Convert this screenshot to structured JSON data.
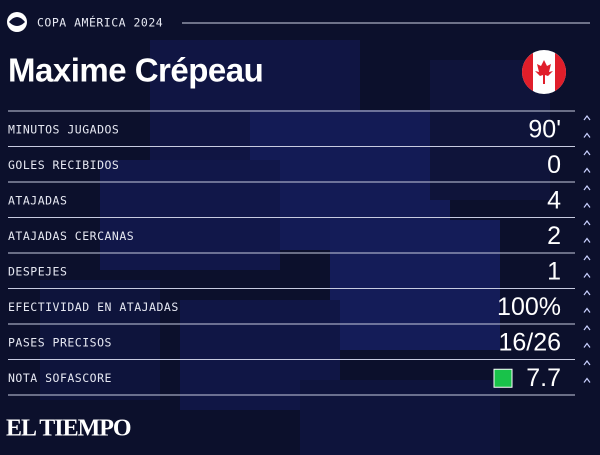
{
  "header": {
    "competition": "COPA AMÉRICA 2024",
    "player": "Maxime Crépeau"
  },
  "stats": {
    "rows": [
      {
        "label": "MINUTOS JUGADOS",
        "value": "90'"
      },
      {
        "label": "GOLES RECIBIDOS",
        "value": "0"
      },
      {
        "label": "ATAJADAS",
        "value": "4"
      },
      {
        "label": "ATAJADAS CERCANAS",
        "value": "2"
      },
      {
        "label": "DESPEJES",
        "value": "1"
      },
      {
        "label": "EFECTIVIDAD EN ATAJADAS",
        "value": "100%"
      },
      {
        "label": "PASES PRECISOS",
        "value": "16/26"
      },
      {
        "label": "NOTA SOFASCORE",
        "value": "7.7"
      }
    ]
  },
  "footer": {
    "brand": "EL TIEMPO"
  }
}
